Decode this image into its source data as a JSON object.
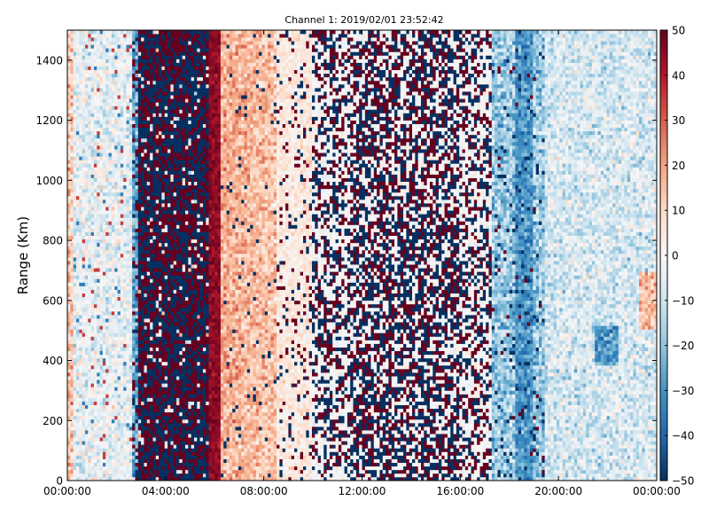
{
  "chart_data": {
    "type": "heatmap",
    "title": "Channel 1: 2019/02/01 23:52:42",
    "ylabel": "Range (Km)",
    "xlabel": "",
    "x_tick_labels": [
      "00:00:00",
      "04:00:00",
      "08:00:00",
      "12:00:00",
      "16:00:00",
      "20:00:00",
      "00:00:00"
    ],
    "x_range_hours": [
      0,
      24
    ],
    "y_ticks": [
      0,
      200,
      400,
      600,
      800,
      1000,
      1200,
      1400
    ],
    "ylim": [
      0,
      1500
    ],
    "colorbar": {
      "colormap": "RdBu_r",
      "range": [
        -50,
        50
      ],
      "ticks": [
        50,
        40,
        30,
        20,
        10,
        0,
        -10,
        -20,
        -30,
        -40,
        -50
      ],
      "colors": {
        "low": "#053061",
        "mid_low": "#4393c3",
        "center": "#f7f7f7",
        "mid_high": "#d6604d",
        "high": "#67001f"
      }
    },
    "time_profile": [
      {
        "hour_start": 0.0,
        "hour_end": 0.25,
        "typical_value": 10,
        "noise": "low"
      },
      {
        "hour_start": 0.25,
        "hour_end": 2.6,
        "typical_value": -5,
        "noise": "low"
      },
      {
        "hour_start": 2.6,
        "hour_end": 2.9,
        "typical_value": -25,
        "noise": "low"
      },
      {
        "hour_start": 2.9,
        "hour_end": 5.8,
        "typical_value": "alternating -50 / +50",
        "noise": "saturated"
      },
      {
        "hour_start": 5.8,
        "hour_end": 6.2,
        "typical_value": 45,
        "noise": "low"
      },
      {
        "hour_start": 6.2,
        "hour_end": 8.5,
        "typical_value": 15,
        "noise": "low"
      },
      {
        "hour_start": 8.5,
        "hour_end": 10.0,
        "typical_value": 5,
        "noise": "sparse extremes"
      },
      {
        "hour_start": 10.0,
        "hour_end": 17.3,
        "typical_value": "alternating -50 / +50 with white gaps",
        "noise": "high"
      },
      {
        "hour_start": 17.3,
        "hour_end": 19.5,
        "typical_value": -20,
        "noise": "sparse extremes"
      },
      {
        "hour_start": 19.5,
        "hour_end": 24.0,
        "typical_value": -8,
        "noise": "low"
      }
    ]
  }
}
